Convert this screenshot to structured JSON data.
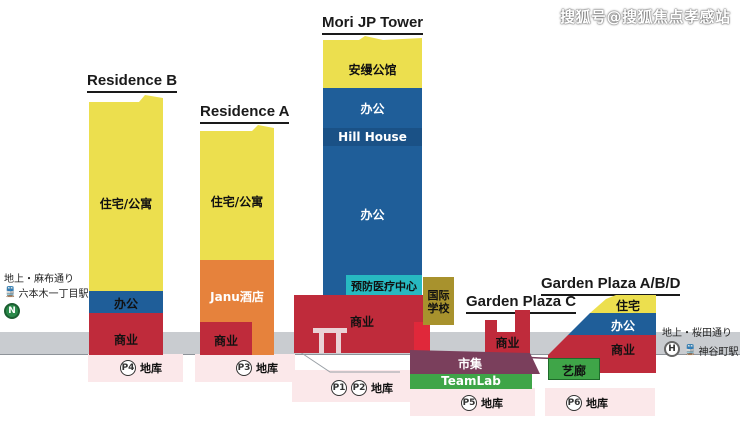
{
  "watermark": "搜狐号@搜狐焦点孝感站",
  "colors": {
    "yellow": "#ecdf4e",
    "blue": "#1f5e99",
    "red": "#bf2b3b",
    "orange": "#e6823c",
    "olive": "#a8922d",
    "purple": "#7a3f5c",
    "green": "#3fa548",
    "cyan": "#27b9c1",
    "ground": "#c9ccd0"
  },
  "buildings": {
    "residence_b": {
      "title": "Residence B",
      "residential": "住宅/公寓",
      "office": "办公",
      "commercial": "商业"
    },
    "residence_a": {
      "title": "Residence A",
      "residential": "住宅/公寓",
      "hotel": "Janu酒店",
      "commercial": "商业"
    },
    "mori_jp_tower": {
      "title": "Mori JP Tower",
      "aman": "安缦公馆",
      "office_upper": "办公",
      "hill_house": "Hill House",
      "office_lower": "办公",
      "clinic": "预防医疗中心",
      "commercial": "商业"
    },
    "school": {
      "label": "国际学校"
    },
    "garden_plaza_c": {
      "title": "Garden Plaza C",
      "commercial": "商业"
    },
    "garden_plaza_abd": {
      "title": "Garden Plaza A/B/D",
      "residential": "住宅",
      "office": "办公",
      "commercial": "商业"
    },
    "market": "市集",
    "teamlab": "TeamLab",
    "gallery": "艺廊"
  },
  "left_street": {
    "line1": "地上・麻布通り",
    "line2": "六本木一丁目駅",
    "badge": "N"
  },
  "right_street": {
    "line1": "地上・桜田通り",
    "line2": "神谷町駅",
    "badge": "H"
  },
  "parking": {
    "p4": {
      "badge": "P4",
      "label": "地库"
    },
    "p3": {
      "badge": "P3",
      "label": "地库"
    },
    "p1": {
      "badge": "P1"
    },
    "p2": {
      "badge": "P2",
      "label": "地库"
    },
    "p5": {
      "badge": "P5",
      "label": "地库"
    },
    "p6": {
      "badge": "P6",
      "label": "地库"
    }
  }
}
